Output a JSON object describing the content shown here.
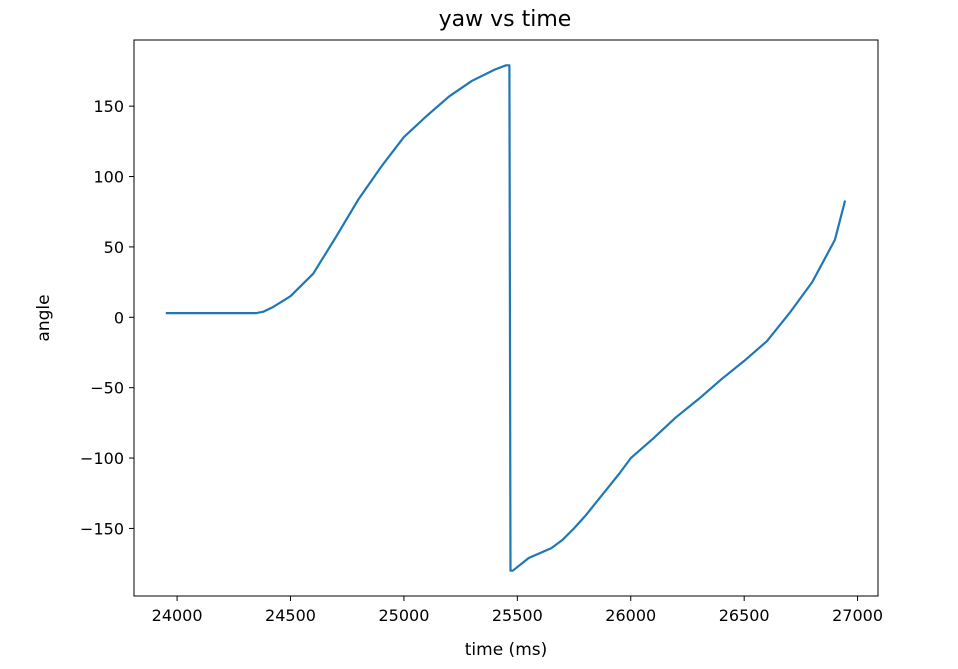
{
  "chart_data": {
    "type": "line",
    "title": "yaw vs time",
    "xlabel": "time (ms)",
    "ylabel": "angle",
    "xlim": [
      23810,
      27090
    ],
    "ylim": [
      -198,
      197
    ],
    "xticks": [
      24000,
      24500,
      25000,
      25500,
      26000,
      26500,
      27000
    ],
    "xtick_labels": [
      "24000",
      "24500",
      "25000",
      "25500",
      "26000",
      "26500",
      "27000"
    ],
    "yticks": [
      150,
      100,
      50,
      0,
      -50,
      -100,
      -150
    ],
    "ytick_labels": [
      "150",
      "100",
      "50",
      "0",
      "−50",
      "−100",
      "−150"
    ],
    "grid": false,
    "legend": "none",
    "series": [
      {
        "color": "#1f77b4",
        "x": [
          23950,
          24100,
          24250,
          24350,
          24380,
          24420,
          24500,
          24600,
          24700,
          24800,
          24900,
          25000,
          25100,
          25200,
          25300,
          25400,
          25450,
          25465,
          25470,
          25480,
          25550,
          25650,
          25700,
          25750,
          25800,
          25850,
          25900,
          25950,
          26000,
          26100,
          26200,
          26300,
          26400,
          26500,
          26600,
          26700,
          26800,
          26900,
          26945
        ],
        "y": [
          3,
          3,
          3,
          3,
          4,
          7,
          15,
          31,
          57,
          84,
          107,
          128,
          143,
          157,
          168,
          176,
          179,
          179,
          -180,
          -180,
          -171,
          -164,
          -158,
          -150,
          -141,
          -131,
          -121,
          -111,
          -100,
          -86,
          -71,
          -58,
          -44,
          -31,
          -17,
          3,
          25,
          55,
          83
        ]
      }
    ]
  }
}
